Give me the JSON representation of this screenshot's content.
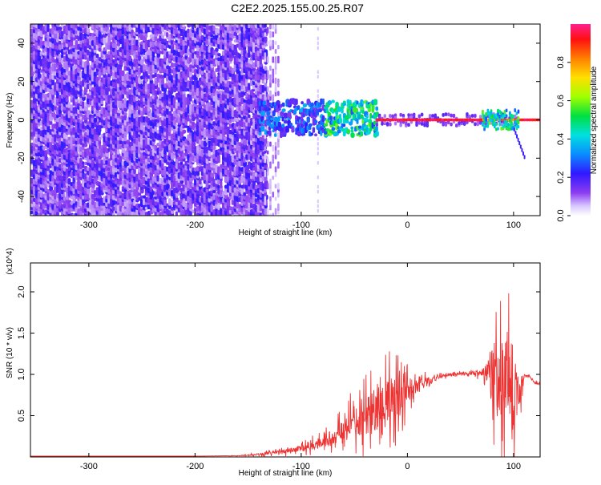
{
  "title": "C2E2.2025.155.00.25.R07",
  "chart_data": [
    {
      "type": "heatmap",
      "xlabel": "Height of straight line (km)",
      "ylabel": "Frequency (Hz)",
      "xlim": [
        -355,
        125
      ],
      "ylim": [
        -50,
        50
      ],
      "x_ticks": [
        -300,
        -200,
        -100,
        0,
        100
      ],
      "y_ticks": [
        -40,
        -20,
        0,
        20,
        40
      ],
      "colorbar": {
        "label": "Normalized spectral amplitude",
        "range": [
          0,
          1
        ],
        "ticks": [
          "0.0",
          "0.2",
          "0.4",
          "0.6",
          "0.8"
        ],
        "tick_values": [
          0,
          0.2,
          0.4,
          0.6,
          0.8
        ]
      },
      "regions": [
        {
          "x_range": [
            -355,
            -135
          ],
          "freq_range": [
            -50,
            50
          ],
          "amplitude": "low (~0.15), broadband noise"
        },
        {
          "x_range": [
            -135,
            -120
          ],
          "freq_range": [
            -50,
            50
          ],
          "amplitude": "very low, sparse noise"
        },
        {
          "x_range": [
            -140,
            -30
          ],
          "freq_range": [
            -8,
            10
          ],
          "amplitude": "0.2-0.5, scattered"
        },
        {
          "x_range": [
            -80,
            -30
          ],
          "freq_range": [
            -5,
            8
          ],
          "amplitude": "0.4-0.6"
        },
        {
          "x_range": [
            -30,
            70
          ],
          "freq_range": [
            -1,
            1
          ],
          "amplitude": "~0.95, narrow carrier line"
        },
        {
          "x_range": [
            70,
            105
          ],
          "freq_range": [
            -5,
            5
          ],
          "amplitude": "0.3-0.6"
        },
        {
          "x_range": [
            100,
            110
          ],
          "freq_range": [
            -20,
            -5
          ],
          "amplitude": "~0.2, tail"
        }
      ]
    },
    {
      "type": "line",
      "xlabel": "Height of straight line (km)",
      "ylabel": "SNR (10 * v/v)",
      "y_multiplier": "(x10^4)",
      "xlim": [
        -355,
        125
      ],
      "ylim": [
        0,
        2.35
      ],
      "x_ticks": [
        -300,
        -200,
        -100,
        0,
        100
      ],
      "y_ticks": [
        0.5,
        1.0,
        1.5,
        2.0
      ],
      "series": [
        {
          "color": "#ee3333",
          "x": [
            -355,
            -300,
            -250,
            -200,
            -160,
            -140,
            -120,
            -100,
            -90,
            -80,
            -70,
            -60,
            -50,
            -40,
            -30,
            -20,
            -10,
            0,
            10,
            20,
            30,
            40,
            50,
            60,
            70,
            75,
            80,
            85,
            90,
            95,
            100,
            105,
            110,
            115,
            120,
            125
          ],
          "y": [
            0.01,
            0.01,
            0.01,
            0.01,
            0.015,
            0.03,
            0.06,
            0.1,
            0.14,
            0.18,
            0.25,
            0.35,
            0.45,
            0.5,
            0.58,
            0.6,
            0.7,
            0.78,
            0.86,
            0.92,
            0.97,
            1.0,
            1.01,
            1.02,
            1.02,
            1.03,
            1.0,
            0.95,
            0.95,
            0.9,
            0.85,
            0.9,
            0.98,
            0.98,
            0.9,
            0.88
          ],
          "spread": [
            0.0,
            0.0,
            0.0,
            0.0,
            0.005,
            0.03,
            0.05,
            0.1,
            0.12,
            0.14,
            0.2,
            0.3,
            0.4,
            0.55,
            0.6,
            0.7,
            0.55,
            0.35,
            0.2,
            0.1,
            0.05,
            0.04,
            0.04,
            0.05,
            0.1,
            0.25,
            0.85,
            1.1,
            1.1,
            1.1,
            1.2,
            0.65,
            0.05,
            0.03,
            0.03,
            0.03
          ]
        }
      ]
    }
  ]
}
